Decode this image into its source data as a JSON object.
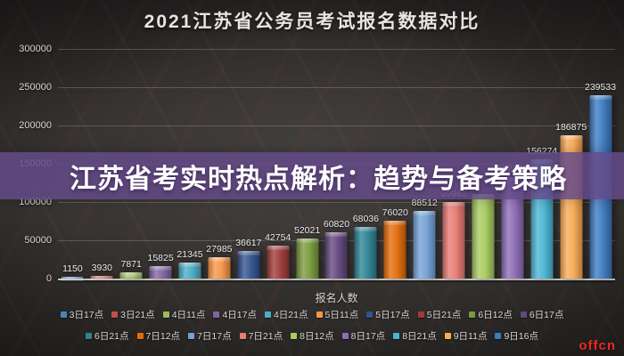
{
  "header": {
    "title": "2021江苏省公务员考试报名数据对比"
  },
  "overlay": {
    "headline": "江苏省考实时热点解析：趋势与备考策略",
    "band_color_rgba": "rgba(100,74,136,0.85)"
  },
  "xaxis": {
    "label": "报名人数"
  },
  "watermark": {
    "text": "offcn",
    "color": "#ec2a1f"
  },
  "chart_data": {
    "type": "bar",
    "title": "2021江苏省公务员考试报名数据对比",
    "xlabel": "报名人数",
    "ylabel": "",
    "ylim": [
      0,
      300000
    ],
    "y_ticks": [
      300000,
      250000,
      200000,
      150000,
      100000,
      50000,
      0
    ],
    "grid": true,
    "legend_position": "bottom-two-rows",
    "legend_row_split": 10,
    "categories": [
      "3日17点",
      "3日21点",
      "4日11点",
      "4日17点",
      "4日21点",
      "5日11点",
      "5日17点",
      "5日21点",
      "6日12点",
      "6日17点",
      "6日21点",
      "7日12点",
      "7日17点",
      "7日21点",
      "8日12点",
      "8日17点",
      "8日21点",
      "9日11点",
      "9日16点"
    ],
    "values": [
      1150,
      3930,
      7871,
      15825,
      21345,
      27985,
      36617,
      42754,
      52021,
      60820,
      68036,
      76020,
      88512,
      99946,
      110000,
      132765,
      156274,
      186875,
      239533
    ],
    "value_labels": [
      "1150",
      "3930",
      "7871",
      "15825",
      "21345",
      "27985",
      "36617",
      "42754",
      "52021",
      "60820",
      "68036",
      "76020",
      "88512",
      "99946",
      "",
      "132765",
      "156274",
      "186875",
      "239533"
    ],
    "bar_colors": [
      "#4f81bd",
      "#c0504d",
      "#9bbb59",
      "#8064a2",
      "#4bacc6",
      "#f79646",
      "#31538f",
      "#9e3b38",
      "#7a9a3d",
      "#63477e",
      "#2e8396",
      "#e36c0a",
      "#74a2d8",
      "#e97a74",
      "#a8cc60",
      "#8d6cb8",
      "#4ab6d4",
      "#f9ab55",
      "#3d7ac2"
    ]
  }
}
